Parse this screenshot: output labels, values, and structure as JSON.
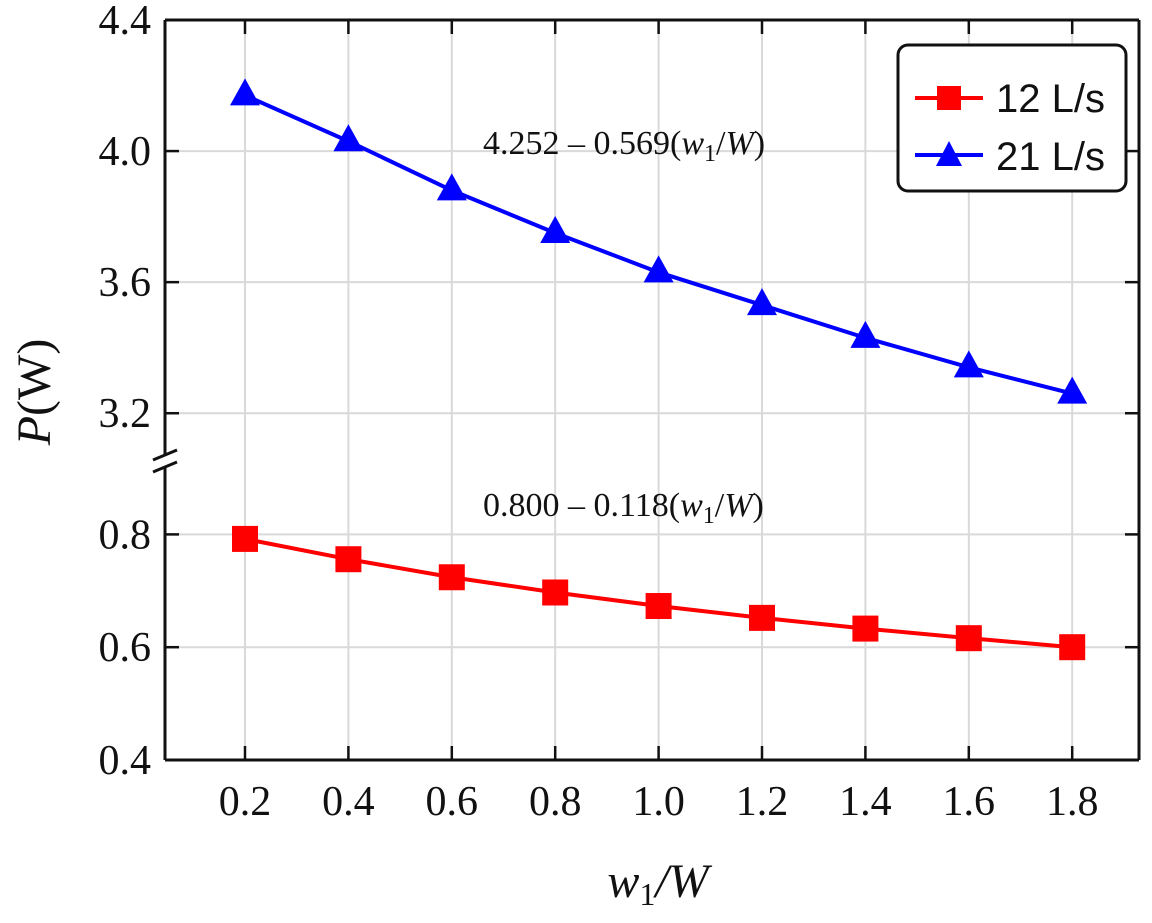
{
  "chart_data": {
    "type": "line",
    "xlabel": {
      "main": "w",
      "sub": "1",
      "rest": "/W"
    },
    "ylabel": {
      "italic": "P",
      "rest": "(W)"
    },
    "x": [
      0.2,
      0.4,
      0.6,
      0.8,
      1.0,
      1.2,
      1.4,
      1.6,
      1.8
    ],
    "x_tick_labels": [
      "0.2",
      "0.4",
      "0.6",
      "0.8",
      "1.0",
      "1.2",
      "1.4",
      "1.6",
      "1.8"
    ],
    "y_broken_axis": true,
    "y_lower": {
      "range": [
        0.4,
        0.9
      ],
      "ticks": [
        "0.4",
        "0.6",
        "0.8"
      ]
    },
    "y_upper": {
      "range": [
        3.1,
        4.4
      ],
      "ticks": [
        "3.2",
        "3.6",
        "4.0",
        "4.4"
      ]
    },
    "grid": true,
    "legend_position": "top-right",
    "series": [
      {
        "name": "12 L/s",
        "segment": "lower",
        "marker": "square",
        "color": "#ff0000",
        "values": [
          0.792,
          0.756,
          0.724,
          0.697,
          0.673,
          0.652,
          0.633,
          0.616,
          0.6
        ]
      },
      {
        "name": "21 L/s",
        "segment": "upper",
        "marker": "triangle",
        "color": "#0000ff",
        "values": [
          4.17,
          4.03,
          3.88,
          3.75,
          3.63,
          3.53,
          3.43,
          3.34,
          3.26
        ]
      }
    ],
    "annotations": [
      {
        "id": "fit-upper",
        "segment": "upper",
        "pre": "4.252 – 0.569(",
        "w": "w",
        "sub": "1",
        "slash": "/",
        "W": "W",
        "post": ")"
      },
      {
        "id": "fit-lower",
        "segment": "lower",
        "pre": "0.800 – 0.118(",
        "w": "w",
        "sub": "1",
        "slash": "/",
        "W": "W",
        "post": ")"
      }
    ]
  }
}
